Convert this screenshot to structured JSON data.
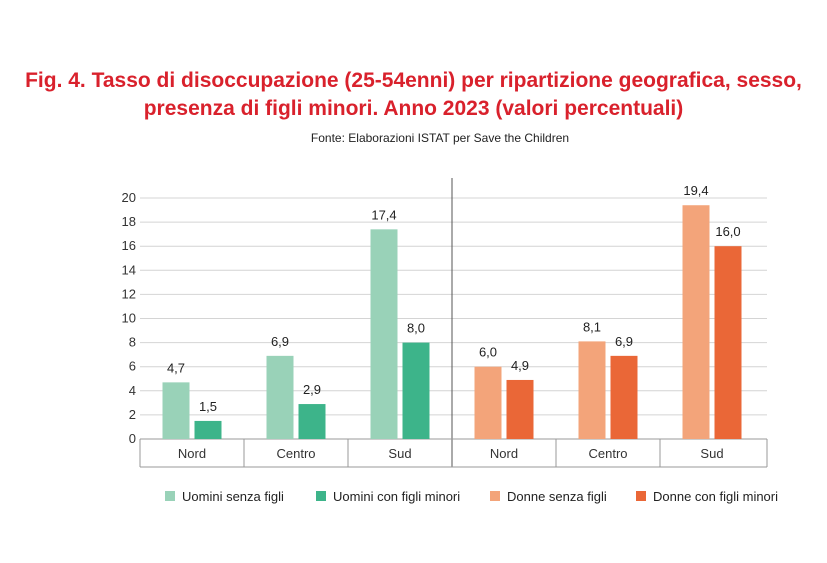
{
  "title_line1": "Fig. 4. Tasso di disoccupazione (25-54enni) per ripartizione geografica, sesso,",
  "title_line2": "presenza di figli minori. Anno 2023 (valori percentuali)",
  "subtitle": "Fonte: Elaborazioni ISTAT per Save the Children",
  "colors": {
    "uomini_senza": "#99d2b8",
    "uomini_con": "#3db48a",
    "donne_senza": "#f3a47a",
    "donne_con": "#ea6737"
  },
  "chart_data": {
    "type": "bar",
    "title": "Tasso di disoccupazione (25-54enni) per ripartizione geografica, sesso, presenza di figli minori. Anno 2023 (valori percentuali)",
    "ylim": [
      0,
      20
    ],
    "yticks": [
      "0",
      "2",
      "4",
      "6",
      "8",
      "10",
      "12",
      "14",
      "16",
      "18",
      "20"
    ],
    "categories": [
      "Nord",
      "Centro",
      "Sud",
      "Nord",
      "Centro",
      "Sud"
    ],
    "groups": [
      {
        "categories": [
          "Nord",
          "Centro",
          "Sud"
        ],
        "series": [
          {
            "name": "Uomini senza figli",
            "color": "#99d2b8",
            "values": [
              4.7,
              6.9,
              17.4
            ],
            "labels": [
              "4,7",
              "6,9",
              "17,4"
            ]
          },
          {
            "name": "Uomini con figli minori",
            "color": "#3db48a",
            "values": [
              1.5,
              2.9,
              8.0
            ],
            "labels": [
              "1,5",
              "2,9",
              "8,0"
            ]
          }
        ]
      },
      {
        "categories": [
          "Nord",
          "Centro",
          "Sud"
        ],
        "series": [
          {
            "name": "Donne senza figli",
            "color": "#f3a47a",
            "values": [
              6.0,
              8.1,
              19.4
            ],
            "labels": [
              "6,0",
              "8,1",
              "19,4"
            ]
          },
          {
            "name": "Donne con figli minori",
            "color": "#ea6737",
            "values": [
              4.9,
              6.9,
              16.0
            ],
            "labels": [
              "4,9",
              "6,9",
              "16,0"
            ]
          }
        ]
      }
    ],
    "legend": [
      "Uomini senza figli",
      "Uomini con figli minori",
      "Donne senza figli",
      "Donne con figli minori"
    ]
  }
}
